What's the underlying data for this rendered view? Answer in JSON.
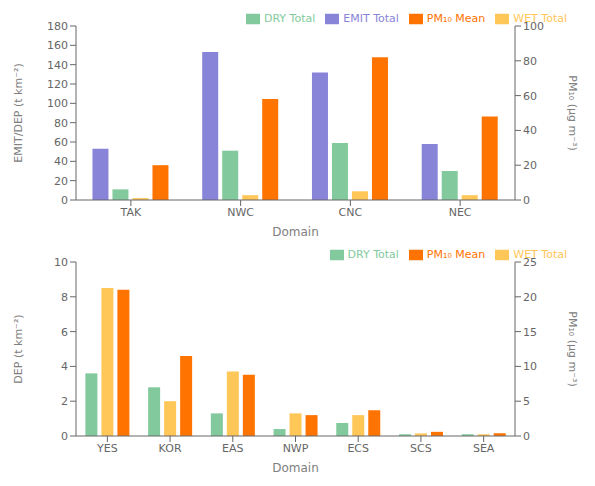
{
  "chart_data": [
    {
      "type": "bar",
      "categories": [
        "TAK",
        "NWC",
        "CNC",
        "NEC"
      ],
      "xlabel": "Domain",
      "ylabel": "EMIT/DEP (t km⁻²)",
      "y2label": "PM₁₀ (μg m⁻³)",
      "ylim": [
        0,
        180
      ],
      "yticks": [
        0,
        20,
        40,
        60,
        80,
        100,
        120,
        140,
        160,
        180
      ],
      "y2lim": [
        0,
        100
      ],
      "y2ticks": [
        0,
        20,
        40,
        60,
        80,
        100
      ],
      "grid": false,
      "legend": "upper right",
      "series": [
        {
          "name": "EMIT Total",
          "color": "#8884d8",
          "values": [
            53,
            153,
            132,
            58
          ]
        },
        {
          "name": "DRY Total",
          "color": "#82ca9d",
          "values": [
            11,
            51,
            59,
            30
          ]
        },
        {
          "name": "WET Total",
          "color": "#ffc658",
          "values": [
            2,
            5,
            9,
            5
          ]
        },
        {
          "name": "PM₁₀ Mean",
          "color": "#ff7300",
          "values": [
            20,
            58,
            82,
            48
          ],
          "axis": "y2"
        }
      ]
    },
    {
      "type": "bar",
      "categories": [
        "YES",
        "KOR",
        "EAS",
        "NWP",
        "ECS",
        "SCS",
        "SEA"
      ],
      "xlabel": "Domain",
      "ylabel": "DEP (t km⁻²)",
      "y2label": "PM₁₀ (μg m⁻³)",
      "ylim": [
        0,
        10
      ],
      "yticks": [
        0,
        2,
        4,
        6,
        8,
        10
      ],
      "y2lim": [
        0,
        25
      ],
      "y2ticks": [
        0,
        5,
        10,
        15,
        20,
        25
      ],
      "grid": false,
      "legend": "upper right",
      "series": [
        {
          "name": "DRY Total",
          "color": "#82ca9d",
          "values": [
            3.6,
            2.8,
            1.3,
            0.4,
            0.75,
            0.1,
            0.1
          ]
        },
        {
          "name": "WET Total",
          "color": "#ffc658",
          "values": [
            8.5,
            2.0,
            3.7,
            1.3,
            1.2,
            0.15,
            0.1
          ]
        },
        {
          "name": "PM₁₀ Mean",
          "color": "#ff7300",
          "values": [
            21,
            11.5,
            8.8,
            3.0,
            3.7,
            0.6,
            0.4
          ],
          "axis": "y2"
        }
      ]
    }
  ]
}
